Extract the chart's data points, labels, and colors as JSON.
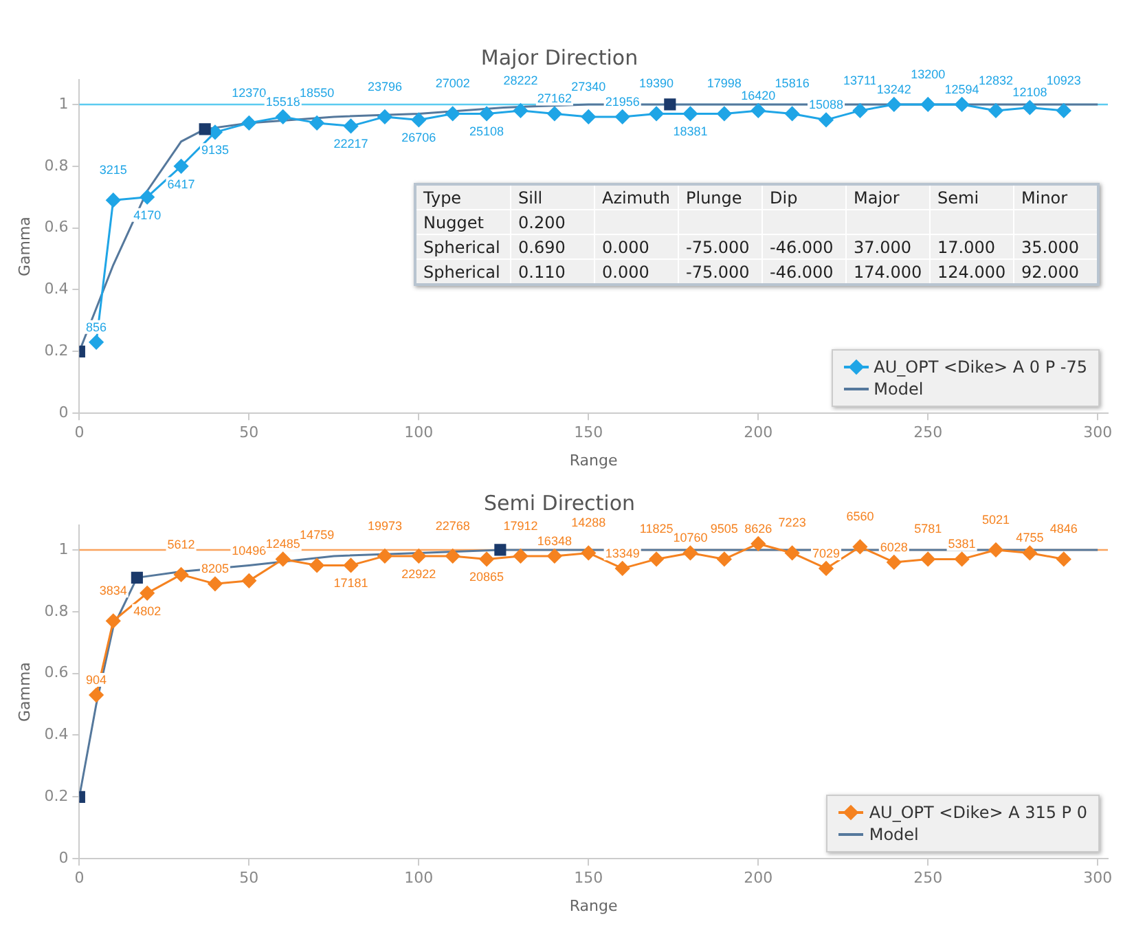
{
  "chart_data": [
    {
      "type": "line",
      "title": "Major Direction",
      "xlabel": "Range",
      "ylabel": "Gamma",
      "xlim": [
        0,
        303
      ],
      "ylim": [
        0,
        1.08
      ],
      "xticks": [
        0,
        50,
        100,
        150,
        200,
        250,
        300
      ],
      "yticks": [
        0,
        0.2,
        0.4,
        0.6,
        0.8,
        1
      ],
      "grid": false,
      "legend": "bottom right",
      "ref_lines": [
        {
          "axis": "y",
          "value": 1,
          "color": "#5ccbf0"
        }
      ],
      "annotations": [
        "Type\tSill\tAzimuth\tPlunge\tDip\tMajor\tSemi\tMinor",
        "Nugget\t0.200",
        "Spherical\t0.690\t0.000\t-75.000\t-46.000\t37.000\t17.000\t35.000",
        "Spherical\t0.110\t0.000\t-75.000\t-46.000\t174.000\t124.000\t92.000",
        {
          "text": "856",
          "x": 5,
          "y": 0.23
        },
        {
          "text": "3215",
          "x": 10,
          "y": 0.69
        },
        {
          "text": "4170",
          "x": 20,
          "y": 0.7
        },
        {
          "text": "6417",
          "x": 30,
          "y": 0.8
        },
        {
          "text": "9135",
          "x": 40,
          "y": 0.91
        },
        {
          "text": "12370",
          "x": 50,
          "y": 0.94
        },
        {
          "text": "15518",
          "x": 60,
          "y": 0.96
        },
        {
          "text": "18550",
          "x": 70,
          "y": 0.94
        },
        {
          "text": "22217",
          "x": 80,
          "y": 0.93
        },
        {
          "text": "23796",
          "x": 90,
          "y": 0.96
        },
        {
          "text": "26706",
          "x": 100,
          "y": 0.95
        },
        {
          "text": "27002",
          "x": 110,
          "y": 0.97
        },
        {
          "text": "25108",
          "x": 120,
          "y": 0.97
        },
        {
          "text": "28222",
          "x": 130,
          "y": 0.98
        },
        {
          "text": "27162",
          "x": 140,
          "y": 0.97
        },
        {
          "text": "27340",
          "x": 150,
          "y": 0.96
        },
        {
          "text": "21956",
          "x": 160,
          "y": 0.96
        },
        {
          "text": "19390",
          "x": 170,
          "y": 0.97
        },
        {
          "text": "18381",
          "x": 180,
          "y": 0.97
        },
        {
          "text": "17998",
          "x": 190,
          "y": 0.97
        },
        {
          "text": "16420",
          "x": 200,
          "y": 0.98
        },
        {
          "text": "15816",
          "x": 210,
          "y": 0.97
        },
        {
          "text": "15088",
          "x": 220,
          "y": 0.95
        },
        {
          "text": "13711",
          "x": 230,
          "y": 0.98
        },
        {
          "text": "13242",
          "x": 240,
          "y": 1.0
        },
        {
          "text": "13200",
          "x": 250,
          "y": 1.0
        },
        {
          "text": "12594",
          "x": 260,
          "y": 1.0
        },
        {
          "text": "12832",
          "x": 270,
          "y": 0.98
        },
        {
          "text": "12108",
          "x": 280,
          "y": 0.99
        },
        {
          "text": "10923",
          "x": 290,
          "y": 0.98
        }
      ],
      "series": [
        {
          "name": "AU_OPT <Dike> A 0 P -75",
          "type": "line",
          "marker": "diamond",
          "color": "#1fa5e6",
          "x": [
            5,
            10,
            20,
            30,
            40,
            50,
            60,
            70,
            80,
            90,
            100,
            110,
            120,
            130,
            140,
            150,
            160,
            170,
            180,
            190,
            200,
            210,
            220,
            230,
            240,
            250,
            260,
            270,
            280,
            290
          ],
          "values": [
            0.23,
            0.69,
            0.7,
            0.8,
            0.91,
            0.94,
            0.96,
            0.94,
            0.93,
            0.96,
            0.95,
            0.97,
            0.97,
            0.98,
            0.97,
            0.96,
            0.96,
            0.97,
            0.97,
            0.97,
            0.98,
            0.97,
            0.95,
            0.98,
            1.0,
            1.0,
            1.0,
            0.98,
            0.99,
            0.98
          ]
        },
        {
          "name": "Model",
          "type": "line",
          "marker": "none",
          "color": "#55789c",
          "x": [
            0,
            5,
            10,
            20,
            30,
            37,
            50,
            75,
            100,
            125,
            150,
            174,
            300
          ],
          "values": [
            0.2,
            0.34,
            0.48,
            0.72,
            0.88,
            0.92,
            0.94,
            0.96,
            0.97,
            0.99,
            1.0,
            1.0,
            1.0
          ]
        },
        {
          "type": "scatter",
          "marker": "square",
          "color": "#1b3a6b",
          "x": [
            0,
            37,
            174
          ],
          "values": [
            0.2,
            0.92,
            1.0
          ]
        }
      ]
    },
    {
      "type": "line",
      "title": "Semi Direction",
      "xlabel": "Range",
      "ylabel": "Gamma",
      "xlim": [
        0,
        303
      ],
      "ylim": [
        0,
        1.08
      ],
      "xticks": [
        0,
        50,
        100,
        150,
        200,
        250,
        300
      ],
      "yticks": [
        0,
        0.2,
        0.4,
        0.6,
        0.8,
        1
      ],
      "grid": false,
      "legend": "bottom right",
      "ref_lines": [
        {
          "axis": "y",
          "value": 1,
          "color": "#f9a35e"
        }
      ],
      "annotations": [
        {
          "text": "904",
          "x": 5,
          "y": 0.53
        },
        {
          "text": "3834",
          "x": 10,
          "y": 0.77
        },
        {
          "text": "4802",
          "x": 20,
          "y": 0.86
        },
        {
          "text": "5612",
          "x": 30,
          "y": 0.92
        },
        {
          "text": "8205",
          "x": 40,
          "y": 0.89
        },
        {
          "text": "10496",
          "x": 50,
          "y": 0.9
        },
        {
          "text": "12485",
          "x": 60,
          "y": 0.97
        },
        {
          "text": "14759",
          "x": 70,
          "y": 0.95
        },
        {
          "text": "17181",
          "x": 80,
          "y": 0.95
        },
        {
          "text": "19973",
          "x": 90,
          "y": 0.98
        },
        {
          "text": "22922",
          "x": 100,
          "y": 0.98
        },
        {
          "text": "22768",
          "x": 110,
          "y": 0.98
        },
        {
          "text": "20865",
          "x": 120,
          "y": 0.97
        },
        {
          "text": "17912",
          "x": 130,
          "y": 0.98
        },
        {
          "text": "16348",
          "x": 140,
          "y": 0.98
        },
        {
          "text": "14288",
          "x": 150,
          "y": 0.99
        },
        {
          "text": "13349",
          "x": 160,
          "y": 0.94
        },
        {
          "text": "11825",
          "x": 170,
          "y": 0.97
        },
        {
          "text": "10760",
          "x": 180,
          "y": 0.99
        },
        {
          "text": "9505",
          "x": 190,
          "y": 0.97
        },
        {
          "text": "8626",
          "x": 200,
          "y": 1.02
        },
        {
          "text": "7223",
          "x": 210,
          "y": 0.99
        },
        {
          "text": "7029",
          "x": 220,
          "y": 0.94
        },
        {
          "text": "6560",
          "x": 230,
          "y": 1.01
        },
        {
          "text": "6028",
          "x": 240,
          "y": 0.96
        },
        {
          "text": "5781",
          "x": 250,
          "y": 0.97
        },
        {
          "text": "5381",
          "x": 260,
          "y": 0.97
        },
        {
          "text": "5021",
          "x": 270,
          "y": 1.0
        },
        {
          "text": "4755",
          "x": 280,
          "y": 0.99
        },
        {
          "text": "4846",
          "x": 290,
          "y": 0.97
        }
      ],
      "series": [
        {
          "name": "AU_OPT <Dike> A 315 P 0",
          "type": "line",
          "marker": "diamond",
          "color": "#f58220",
          "x": [
            5,
            10,
            20,
            30,
            40,
            50,
            60,
            70,
            80,
            90,
            100,
            110,
            120,
            130,
            140,
            150,
            160,
            170,
            180,
            190,
            200,
            210,
            220,
            230,
            240,
            250,
            260,
            270,
            280,
            290
          ],
          "values": [
            0.53,
            0.77,
            0.86,
            0.92,
            0.89,
            0.9,
            0.97,
            0.95,
            0.95,
            0.98,
            0.98,
            0.98,
            0.97,
            0.98,
            0.98,
            0.99,
            0.94,
            0.97,
            0.99,
            0.97,
            1.02,
            0.99,
            0.94,
            1.01,
            0.96,
            0.97,
            0.97,
            1.0,
            0.99,
            0.97
          ]
        },
        {
          "name": "Model",
          "type": "line",
          "marker": "none",
          "color": "#55789c",
          "x": [
            0,
            5,
            10,
            17,
            30,
            50,
            75,
            100,
            124,
            300
          ],
          "values": [
            0.2,
            0.5,
            0.75,
            0.91,
            0.93,
            0.95,
            0.98,
            0.99,
            1.0,
            1.0
          ]
        },
        {
          "type": "scatter",
          "marker": "square",
          "color": "#1b3a6b",
          "x": [
            0,
            17,
            124
          ],
          "values": [
            0.2,
            0.91,
            1.0
          ]
        }
      ]
    }
  ]
}
